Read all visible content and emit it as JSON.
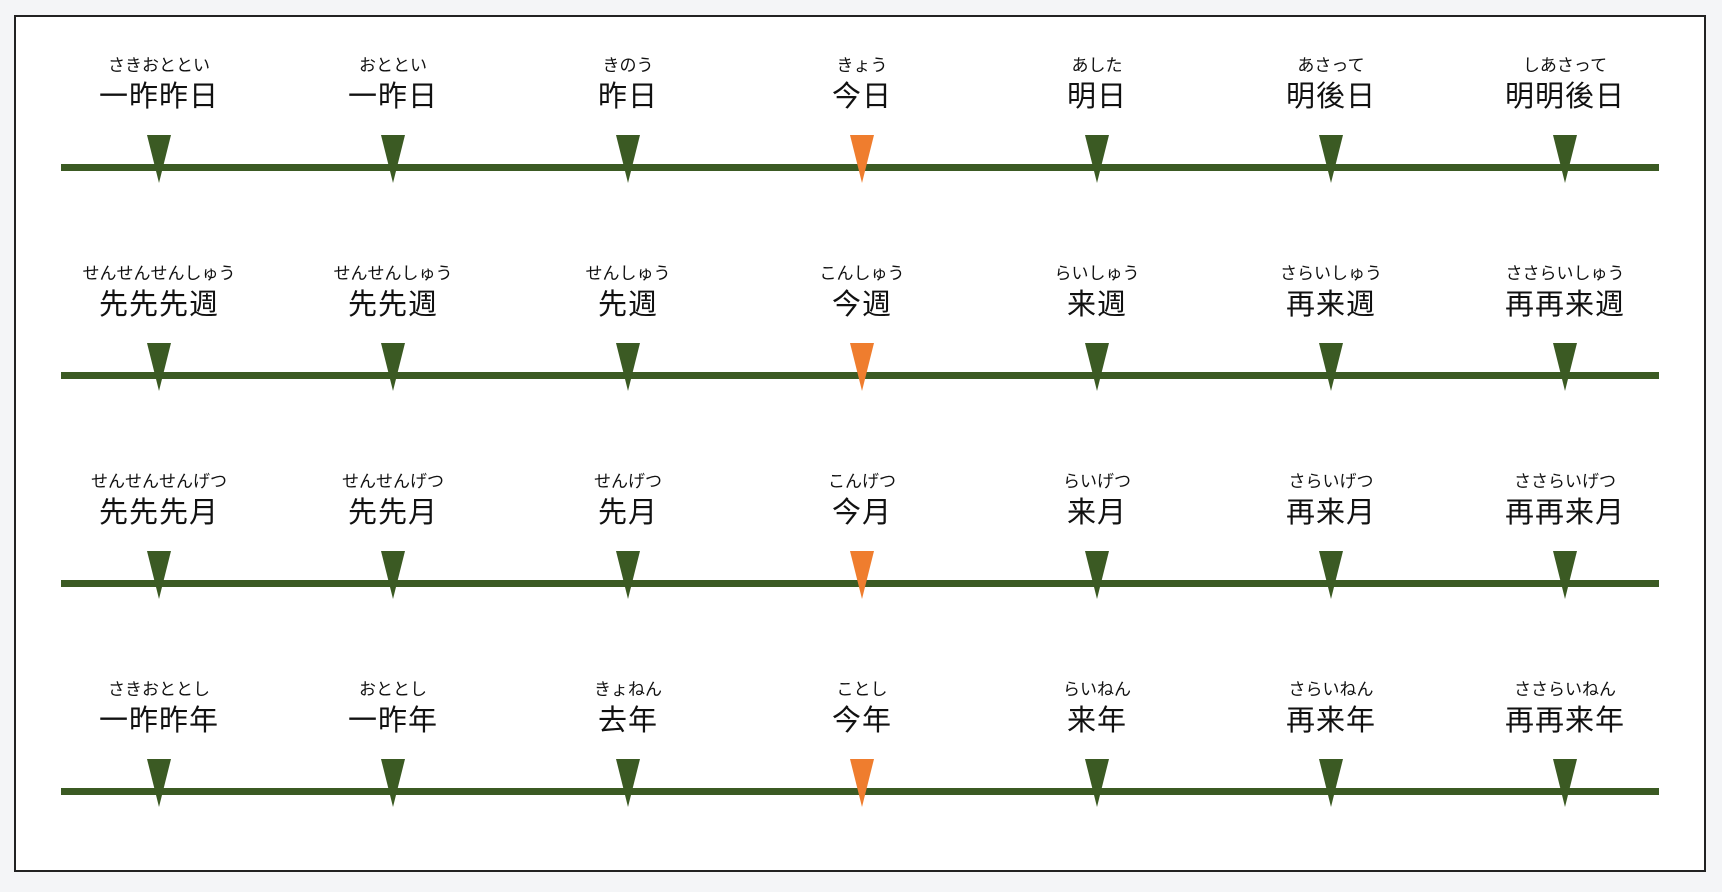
{
  "colors": {
    "line": "#3b5a23",
    "marker": "#3b5a23",
    "current": "#ef7d2e"
  },
  "current_index": 3,
  "rows": [
    {
      "items": [
        {
          "reading": "さきおととい",
          "word": "一昨昨日"
        },
        {
          "reading": "おととい",
          "word": "一昨日"
        },
        {
          "reading": "きのう",
          "word": "昨日"
        },
        {
          "reading": "きょう",
          "word": "今日"
        },
        {
          "reading": "あした",
          "word": "明日"
        },
        {
          "reading": "あさって",
          "word": "明後日"
        },
        {
          "reading": "しあさって",
          "word": "明明後日"
        }
      ]
    },
    {
      "items": [
        {
          "reading": "せんせんせんしゅう",
          "word": "先先先週"
        },
        {
          "reading": "せんせんしゅう",
          "word": "先先週"
        },
        {
          "reading": "せんしゅう",
          "word": "先週"
        },
        {
          "reading": "こんしゅう",
          "word": "今週"
        },
        {
          "reading": "らいしゅう",
          "word": "来週"
        },
        {
          "reading": "さらいしゅう",
          "word": "再来週"
        },
        {
          "reading": "ささらいしゅう",
          "word": "再再来週"
        }
      ]
    },
    {
      "items": [
        {
          "reading": "せんせんせんげつ",
          "word": "先先先月"
        },
        {
          "reading": "せんせんげつ",
          "word": "先先月"
        },
        {
          "reading": "せんげつ",
          "word": "先月"
        },
        {
          "reading": "こんげつ",
          "word": "今月"
        },
        {
          "reading": "らいげつ",
          "word": "来月"
        },
        {
          "reading": "さらいげつ",
          "word": "再来月"
        },
        {
          "reading": "ささらいげつ",
          "word": "再再来月"
        }
      ]
    },
    {
      "items": [
        {
          "reading": "さきおととし",
          "word": "一昨昨年"
        },
        {
          "reading": "おととし",
          "word": "一昨年"
        },
        {
          "reading": "きょねん",
          "word": "去年"
        },
        {
          "reading": "ことし",
          "word": "今年"
        },
        {
          "reading": "らいねん",
          "word": "来年"
        },
        {
          "reading": "さらいねん",
          "word": "再来年"
        },
        {
          "reading": "ささらいねん",
          "word": "再再来年"
        }
      ]
    }
  ]
}
